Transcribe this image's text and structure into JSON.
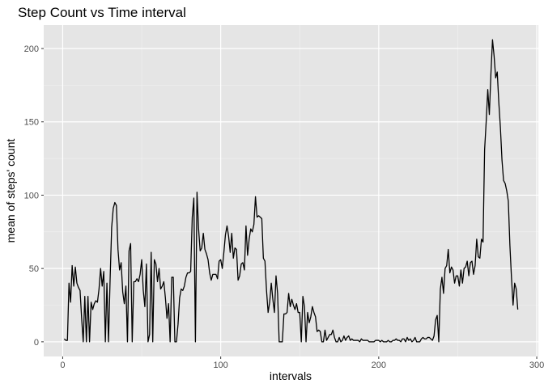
{
  "chart_data": {
    "type": "line",
    "title": "Step Count  vs  Time interval",
    "xlabel": "intervals",
    "ylabel": "mean of steps' count",
    "xlim": [
      -12,
      301
    ],
    "ylim": [
      -10,
      216
    ],
    "x_ticks": [
      0,
      100,
      200,
      300
    ],
    "y_ticks": [
      0,
      50,
      100,
      150,
      200
    ],
    "x_tick_labels": [
      "0",
      "100",
      "200",
      "300"
    ],
    "y_tick_labels": [
      "0",
      "50",
      "100",
      "150",
      "200"
    ],
    "grid": true,
    "line_color": "#000000",
    "panel_background": "#e5e5e5",
    "series": [
      {
        "x": [
          1,
          2,
          3,
          4,
          5,
          6,
          7,
          8,
          9,
          10,
          11,
          12,
          13,
          14,
          15,
          16,
          17,
          18,
          19,
          20,
          21,
          22,
          23,
          24,
          25,
          26,
          27,
          28,
          29,
          30,
          31,
          32,
          33,
          34,
          35,
          36,
          37,
          38,
          39,
          40,
          41,
          42,
          43,
          44,
          45,
          46,
          47,
          48,
          49,
          50,
          51,
          52,
          53,
          54,
          55,
          56,
          57,
          58,
          59,
          60,
          61,
          62,
          63,
          64,
          65,
          66,
          67,
          68,
          69,
          70,
          71,
          72,
          73,
          74,
          75,
          76,
          77,
          78,
          79,
          80,
          81,
          82,
          83,
          84,
          85,
          86,
          87,
          88,
          89,
          90,
          91,
          92,
          93,
          94,
          95,
          96,
          97,
          98,
          99,
          100,
          101,
          102,
          103,
          104,
          105,
          106,
          107,
          108,
          109,
          110,
          111,
          112,
          113,
          114,
          115,
          116,
          117,
          118,
          119,
          120,
          121,
          122,
          123,
          124,
          125,
          126,
          127,
          128,
          129,
          130,
          131,
          132,
          133,
          134,
          135,
          136,
          137,
          138,
          139,
          140,
          141,
          142,
          143,
          144,
          145,
          146,
          147,
          148,
          149,
          150,
          151,
          152,
          153,
          154,
          155,
          156,
          157,
          158,
          159,
          160,
          161,
          162,
          163,
          164,
          165,
          166,
          167,
          168,
          169,
          170,
          171,
          172,
          173,
          174,
          175,
          176,
          177,
          178,
          179,
          180,
          181,
          182,
          183,
          184,
          185,
          186,
          187,
          188,
          189,
          190,
          191,
          192,
          193,
          194,
          195,
          196,
          197,
          198,
          199,
          200,
          201,
          202,
          203,
          204,
          205,
          206,
          207,
          208,
          209,
          210,
          211,
          212,
          213,
          214,
          215,
          216,
          217,
          218,
          219,
          220,
          221,
          222,
          223,
          224,
          225,
          226,
          227,
          228,
          229,
          230,
          231,
          232,
          233,
          234,
          235,
          236,
          237,
          238,
          239,
          240,
          241,
          242,
          243,
          244,
          245,
          246,
          247,
          248,
          249,
          250,
          251,
          252,
          253,
          254,
          255,
          256,
          257,
          258,
          259,
          260,
          261,
          262,
          263,
          264,
          265,
          266,
          267,
          268,
          269,
          270,
          271,
          272,
          273,
          274,
          275,
          276,
          277,
          278,
          279,
          280,
          281,
          282,
          283,
          284,
          285,
          286,
          287,
          288
        ],
        "y": [
          2,
          1,
          1,
          40,
          27,
          52,
          38,
          51,
          40,
          37,
          35,
          16,
          0,
          31,
          0,
          31,
          0,
          27,
          22,
          26,
          28,
          27,
          36,
          50,
          38,
          48,
          0,
          40,
          0,
          42,
          78,
          91,
          95,
          93,
          63,
          49,
          54,
          34,
          26,
          38,
          0,
          62,
          67,
          0,
          41,
          41,
          43,
          41,
          46,
          56,
          35,
          24,
          53,
          0,
          5,
          61,
          0,
          56,
          53,
          41,
          50,
          36,
          38,
          41,
          30,
          16,
          26,
          0,
          44,
          44,
          0,
          0,
          12,
          30,
          36,
          35,
          38,
          44,
          47,
          47,
          48,
          85,
          98,
          0,
          102,
          77,
          62,
          64,
          74,
          63,
          60,
          56,
          47,
          42,
          46,
          46,
          46,
          43,
          55,
          56,
          50,
          61,
          73,
          79,
          72,
          61,
          74,
          57,
          64,
          63,
          42,
          45,
          53,
          54,
          49,
          79,
          59,
          70,
          77,
          75,
          80,
          99,
          85,
          86,
          85,
          84,
          57,
          55,
          35,
          20,
          27,
          40,
          29,
          20,
          45,
          33,
          0,
          0,
          0,
          19,
          19,
          20,
          33,
          24,
          29,
          25,
          22,
          26,
          20,
          20,
          0,
          31,
          24,
          0,
          20,
          13,
          17,
          24,
          20,
          17,
          7,
          8,
          7,
          0,
          0,
          8,
          1,
          3,
          5,
          5,
          8,
          3,
          0,
          0,
          3,
          0,
          1,
          4,
          1,
          3,
          4,
          1,
          2,
          1,
          1,
          1,
          1,
          0,
          2,
          1,
          1,
          1,
          1,
          0,
          0,
          0,
          0,
          1,
          1,
          1,
          0,
          1,
          0,
          0,
          0,
          1,
          0,
          0,
          1,
          1,
          2,
          1,
          1,
          0,
          2,
          2,
          0,
          3,
          1,
          2,
          0,
          1,
          3,
          0,
          0,
          0,
          2,
          3,
          2,
          2,
          3,
          3,
          2,
          1,
          4,
          15,
          18,
          0,
          36,
          44,
          33,
          50,
          52,
          63,
          47,
          51,
          49,
          40,
          45,
          45,
          38,
          49,
          40,
          50,
          51,
          55,
          45,
          54,
          55,
          46,
          52,
          70,
          58,
          57,
          70,
          68,
          131,
          150,
          172,
          155,
          183,
          206,
          195,
          180,
          184,
          163,
          146,
          124,
          110,
          108,
          103,
          96,
          66,
          44,
          25,
          40,
          36,
          22
        ]
      }
    ]
  }
}
